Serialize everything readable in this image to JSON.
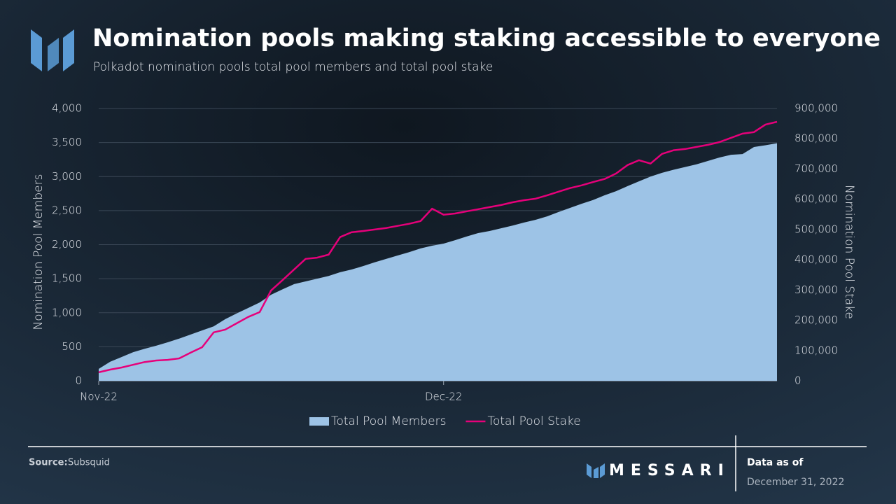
{
  "chart_data": {
    "type": "area-line",
    "title": "Nomination pools making staking accessible to everyone",
    "subtitle": "Polkadot nomination pools total pool members and total pool stake",
    "ylabel": "Nomination Pool Members",
    "y2label": "Nomination Pool Stake",
    "categories": [
      "Nov-22",
      null,
      null,
      null,
      null,
      null,
      null,
      null,
      null,
      null,
      null,
      null,
      null,
      null,
      null,
      null,
      null,
      null,
      null,
      null,
      null,
      null,
      null,
      null,
      null,
      null,
      null,
      null,
      null,
      null,
      "Dec-22",
      null,
      null,
      null,
      null,
      null,
      null,
      null,
      null,
      null,
      null,
      null,
      null,
      null,
      null,
      null,
      null,
      null,
      null,
      null,
      null,
      null,
      null,
      null,
      null,
      null,
      null,
      null,
      null,
      null
    ],
    "ylim": [
      0,
      4000
    ],
    "yticks": [
      0,
      500,
      {
        "value": 1000,
        "label": "1,000"
      },
      {
        "value": 1500,
        "label": "1,500"
      },
      {
        "value": 2000,
        "label": "2,000"
      },
      {
        "value": 2500,
        "label": "2,500"
      },
      {
        "value": 3000,
        "label": "3,000"
      },
      {
        "value": 3500,
        "label": "3,500"
      },
      {
        "value": 4000,
        "label": "4,000"
      }
    ],
    "y2lim": [
      0,
      900000
    ],
    "y2ticks": [
      0,
      {
        "value": 100000,
        "label": "100,000"
      },
      {
        "value": 200000,
        "label": "200,000"
      },
      {
        "value": 300000,
        "label": "300,000"
      },
      {
        "value": 400000,
        "label": "400,000"
      },
      {
        "value": 500000,
        "label": "500,000"
      },
      {
        "value": 600000,
        "label": "600,000"
      },
      {
        "value": 700000,
        "label": "700,000"
      },
      {
        "value": 800000,
        "label": "800,000"
      },
      {
        "value": 900000,
        "label": "900,000"
      }
    ],
    "grid": true,
    "legend": "bottom",
    "series": [
      {
        "name": "Total Pool Members",
        "kind": "area",
        "color": "#9dc3e6",
        "axis": "y",
        "values": [
          175,
          280,
          350,
          420,
          470,
          515,
          565,
          620,
          680,
          740,
          800,
          905,
          990,
          1070,
          1150,
          1265,
          1345,
          1420,
          1460,
          1500,
          1540,
          1595,
          1635,
          1685,
          1740,
          1790,
          1840,
          1890,
          1945,
          1985,
          2015,
          2065,
          2120,
          2170,
          2200,
          2240,
          2280,
          2325,
          2365,
          2415,
          2480,
          2540,
          2600,
          2655,
          2725,
          2785,
          2860,
          2930,
          3000,
          3055,
          3100,
          3140,
          3180,
          3230,
          3280,
          3320,
          3330,
          3435,
          3460,
          3490
        ]
      },
      {
        "name": "Total Pool Stake",
        "kind": "line",
        "color": "#e6007a",
        "axis": "y2",
        "values": [
          28000,
          37000,
          44000,
          53000,
          62000,
          67000,
          69000,
          74000,
          93000,
          111000,
          160000,
          169000,
          190000,
          211000,
          227000,
          299000,
          333000,
          368000,
          403000,
          407000,
          417000,
          475000,
          491000,
          495000,
          500000,
          505000,
          512000,
          519000,
          528000,
          569000,
          549000,
          553000,
          560000,
          567000,
          574000,
          581000,
          590000,
          597000,
          602000,
          613000,
          625000,
          637000,
          646000,
          657000,
          667000,
          685000,
          713000,
          729000,
          718000,
          750000,
          762000,
          766000,
          773000,
          780000,
          789000,
          803000,
          817000,
          822000,
          847000,
          856000
        ]
      }
    ]
  },
  "footer": {
    "source_label": "Source:",
    "source": "Subsquid",
    "brand": "MESSARI",
    "data_as_of_label": "Data as of",
    "data_as_of": "December 31, 2022"
  }
}
